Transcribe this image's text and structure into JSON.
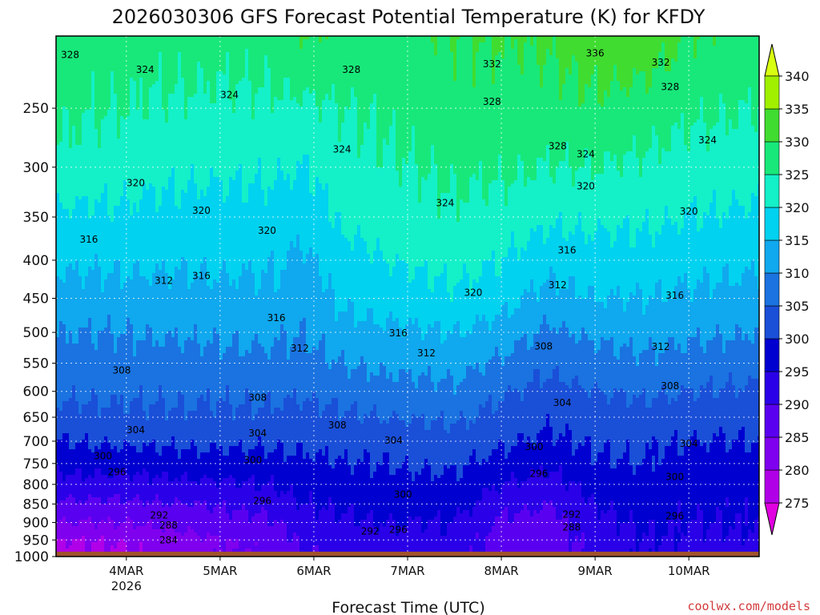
{
  "chart_data": {
    "type": "heatmap",
    "title": "2026030306 GFS Forecast Potential Temperature (K) for KFDY",
    "xlabel": "Forecast Time (UTC)",
    "ylabel": "",
    "x_ticks": [
      {
        "label": "4MAR",
        "sub": "2026",
        "day": 4
      },
      {
        "label": "5MAR",
        "sub": "",
        "day": 5
      },
      {
        "label": "6MAR",
        "sub": "",
        "day": 6
      },
      {
        "label": "7MAR",
        "sub": "",
        "day": 7
      },
      {
        "label": "8MAR",
        "sub": "",
        "day": 8
      },
      {
        "label": "9MAR",
        "sub": "",
        "day": 9
      },
      {
        "label": "10MAR",
        "sub": "",
        "day": 10
      }
    ],
    "xlim_days": [
      3.25,
      10.75
    ],
    "y_ticks": [
      250,
      300,
      350,
      400,
      450,
      500,
      550,
      600,
      650,
      700,
      750,
      800,
      850,
      900,
      950,
      1000
    ],
    "ylim": [
      200,
      1000
    ],
    "y_scale": "log",
    "ground_level_hpa": 985,
    "colorbar": {
      "levels": [
        275,
        280,
        285,
        290,
        295,
        300,
        305,
        310,
        315,
        320,
        325,
        330,
        335,
        340
      ],
      "labels": [
        "275",
        "280",
        "285",
        "290",
        "295",
        "300",
        "305",
        "310",
        "315",
        "320",
        "325",
        "330",
        "335",
        "340"
      ],
      "colors": [
        "#e000e0",
        "#b000e8",
        "#7f00ee",
        "#5a00f0",
        "#2a00e8",
        "#0000d0",
        "#1a4fd8",
        "#1a73e0",
        "#10a8ee",
        "#00d2f0",
        "#14f0c8",
        "#18e87a",
        "#40dc30",
        "#a0f000",
        "#d8ff10"
      ]
    },
    "profiles": [
      {
        "day": 3.25,
        "theta": [
          328,
          326,
          324,
          319,
          316,
          313,
          310,
          308,
          306,
          303,
          300,
          297,
          293,
          289,
          285,
          280
        ]
      },
      {
        "day": 4.0,
        "theta": [
          327,
          325,
          322,
          319,
          316,
          313,
          310,
          308,
          306,
          304,
          301,
          297,
          293,
          289,
          285,
          281
        ]
      },
      {
        "day": 4.75,
        "theta": [
          327,
          324,
          321,
          318,
          316,
          313,
          311,
          308,
          306,
          304,
          301,
          298,
          294,
          290,
          287,
          284
        ]
      },
      {
        "day": 5.5,
        "theta": [
          327,
          324,
          321,
          318,
          316,
          314,
          311,
          309,
          306,
          304,
          301,
          298,
          295,
          292,
          289,
          287
        ]
      },
      {
        "day": 5.9,
        "theta": [
          330,
          324,
          320,
          317,
          314,
          312,
          310,
          308,
          306,
          303,
          301,
          299,
          297,
          295,
          293,
          291
        ]
      },
      {
        "day": 6.3,
        "theta": [
          329,
          325,
          323,
          321,
          318,
          316,
          313,
          310,
          307,
          304,
          302,
          300,
          298,
          296,
          294,
          292
        ]
      },
      {
        "day": 6.75,
        "theta": [
          328,
          326,
          324,
          322,
          320,
          317,
          314,
          311,
          308,
          305,
          302,
          300,
          298,
          297,
          295,
          293
        ]
      },
      {
        "day": 7.5,
        "theta": [
          330,
          328,
          326,
          324,
          322,
          319,
          315,
          312,
          309,
          306,
          303,
          301,
          299,
          297,
          295,
          294
        ]
      },
      {
        "day": 8.0,
        "theta": [
          330,
          328,
          326,
          323,
          320,
          317,
          313,
          309,
          306,
          303,
          301,
          298,
          295,
          292,
          289,
          287
        ]
      },
      {
        "day": 8.5,
        "theta": [
          331,
          328,
          325,
          321,
          317,
          313,
          309,
          306,
          303,
          301,
          299,
          296,
          293,
          290,
          288,
          287
        ]
      },
      {
        "day": 9.0,
        "theta": [
          333,
          329,
          325,
          321,
          318,
          315,
          311,
          308,
          305,
          303,
          301,
          299,
          297,
          295,
          293,
          292
        ]
      },
      {
        "day": 9.5,
        "theta": [
          333,
          328,
          324,
          321,
          318,
          315,
          312,
          309,
          306,
          303,
          301,
          300,
          298,
          297,
          296,
          295
        ]
      },
      {
        "day": 10.0,
        "theta": [
          330,
          326,
          323,
          320,
          317,
          314,
          311,
          308,
          305,
          302,
          300,
          298,
          297,
          296,
          295,
          294
        ]
      },
      {
        "day": 10.75,
        "theta": [
          328,
          325,
          322,
          319,
          316,
          313,
          310,
          307,
          304,
          302,
          300,
          298,
          297,
          296,
          295,
          294
        ]
      }
    ],
    "profile_pressures": [
      200,
      250,
      300,
      350,
      400,
      450,
      500,
      550,
      600,
      650,
      700,
      750,
      800,
      850,
      900,
      950
    ],
    "contour_interval": 2,
    "contour_labels": [
      {
        "text": "328",
        "day": 3.4,
        "p": 212
      },
      {
        "text": "324",
        "day": 4.2,
        "p": 222
      },
      {
        "text": "328",
        "day": 6.4,
        "p": 222
      },
      {
        "text": "332",
        "day": 7.9,
        "p": 218
      },
      {
        "text": "336",
        "day": 9.0,
        "p": 211
      },
      {
        "text": "332",
        "day": 9.7,
        "p": 217
      },
      {
        "text": "328",
        "day": 9.8,
        "p": 234
      },
      {
        "text": "324",
        "day": 5.1,
        "p": 240
      },
      {
        "text": "328",
        "day": 7.9,
        "p": 245
      },
      {
        "text": "324",
        "day": 10.2,
        "p": 276
      },
      {
        "text": "324",
        "day": 6.3,
        "p": 284
      },
      {
        "text": "328",
        "day": 8.6,
        "p": 281
      },
      {
        "text": "324",
        "day": 8.9,
        "p": 288
      },
      {
        "text": "320",
        "day": 4.1,
        "p": 315
      },
      {
        "text": "320",
        "day": 8.9,
        "p": 318
      },
      {
        "text": "324",
        "day": 7.4,
        "p": 335
      },
      {
        "text": "320",
        "day": 4.8,
        "p": 343
      },
      {
        "text": "320",
        "day": 10.0,
        "p": 344
      },
      {
        "text": "320",
        "day": 5.5,
        "p": 365
      },
      {
        "text": "316",
        "day": 3.6,
        "p": 375
      },
      {
        "text": "316",
        "day": 8.7,
        "p": 388
      },
      {
        "text": "312",
        "day": 4.4,
        "p": 426
      },
      {
        "text": "316",
        "day": 4.8,
        "p": 420
      },
      {
        "text": "312",
        "day": 8.6,
        "p": 432
      },
      {
        "text": "320",
        "day": 7.7,
        "p": 442
      },
      {
        "text": "316",
        "day": 9.85,
        "p": 446
      },
      {
        "text": "316",
        "day": 5.6,
        "p": 478
      },
      {
        "text": "316",
        "day": 6.9,
        "p": 501
      },
      {
        "text": "308",
        "day": 8.45,
        "p": 522
      },
      {
        "text": "312",
        "day": 5.85,
        "p": 525
      },
      {
        "text": "312",
        "day": 7.2,
        "p": 533
      },
      {
        "text": "312",
        "day": 9.7,
        "p": 523
      },
      {
        "text": "308",
        "day": 3.95,
        "p": 562
      },
      {
        "text": "308",
        "day": 9.8,
        "p": 590
      },
      {
        "text": "308",
        "day": 5.4,
        "p": 612
      },
      {
        "text": "304",
        "day": 8.65,
        "p": 622
      },
      {
        "text": "308",
        "day": 6.25,
        "p": 666
      },
      {
        "text": "304",
        "day": 4.1,
        "p": 676
      },
      {
        "text": "304",
        "day": 5.4,
        "p": 683
      },
      {
        "text": "304",
        "day": 6.85,
        "p": 698
      },
      {
        "text": "304",
        "day": 10.0,
        "p": 705
      },
      {
        "text": "300",
        "day": 8.35,
        "p": 712
      },
      {
        "text": "300",
        "day": 3.75,
        "p": 733
      },
      {
        "text": "300",
        "day": 5.35,
        "p": 742
      },
      {
        "text": "296",
        "day": 3.9,
        "p": 770
      },
      {
        "text": "296",
        "day": 8.4,
        "p": 774
      },
      {
        "text": "300",
        "day": 9.85,
        "p": 782
      },
      {
        "text": "300",
        "day": 6.95,
        "p": 825
      },
      {
        "text": "296",
        "day": 5.45,
        "p": 842
      },
      {
        "text": "292",
        "day": 4.35,
        "p": 880
      },
      {
        "text": "292",
        "day": 8.75,
        "p": 878
      },
      {
        "text": "296",
        "day": 9.85,
        "p": 882
      },
      {
        "text": "288",
        "day": 4.45,
        "p": 908
      },
      {
        "text": "288",
        "day": 8.75,
        "p": 914
      },
      {
        "text": "292",
        "day": 6.6,
        "p": 925
      },
      {
        "text": "296",
        "day": 6.9,
        "p": 920
      },
      {
        "text": "284",
        "day": 4.45,
        "p": 950
      }
    ]
  },
  "credit": "coolwx.com/models"
}
